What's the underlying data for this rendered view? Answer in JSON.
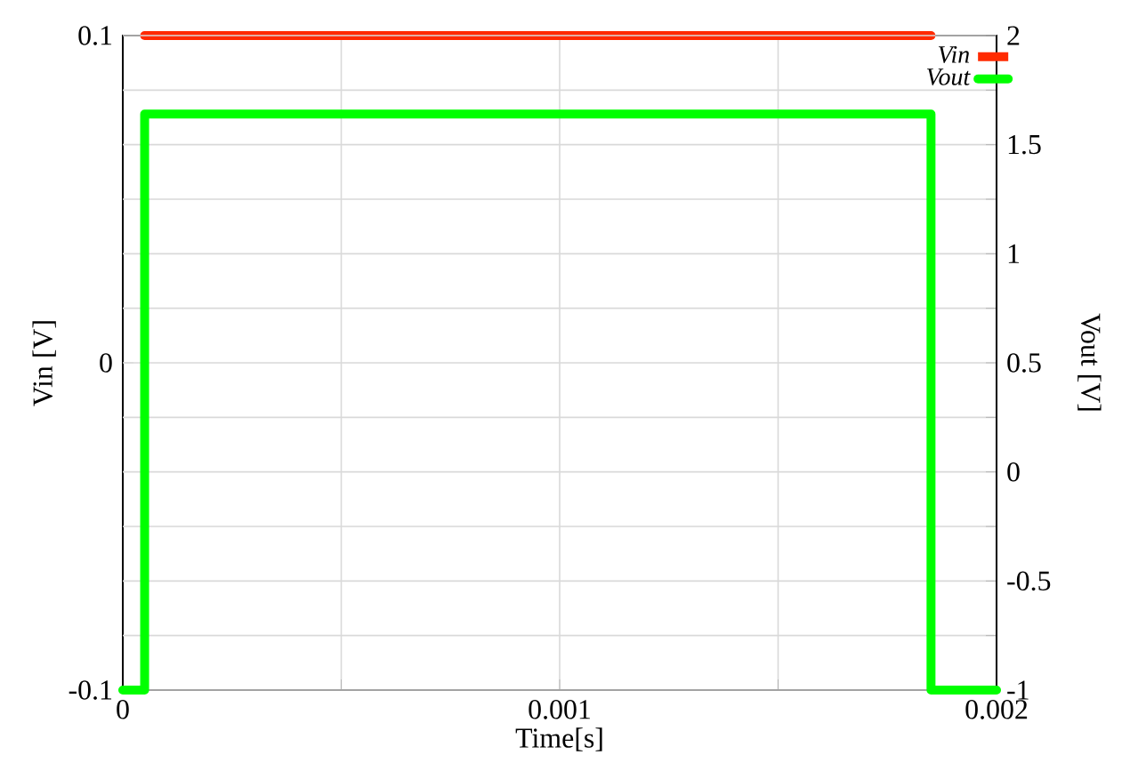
{
  "chart_data": {
    "type": "line",
    "xlabel": "Time[s]",
    "ylabel": "Vin [V]",
    "y2label": "Vout [V]",
    "xlim": [
      0,
      0.002
    ],
    "xticks": [
      0,
      {
        "value": 0.0005,
        "label": null
      },
      0.001,
      {
        "value": 0.0015,
        "label": null
      },
      0.002
    ],
    "ylim": [
      -0.1,
      0.1
    ],
    "yticks": [
      -0.1,
      0,
      0.1
    ],
    "y2lim": [
      -1,
      2
    ],
    "y2ticks": [
      -1,
      {
        "value": -0.75,
        "label": null
      },
      -0.5,
      {
        "value": -0.25,
        "label": null
      },
      0,
      {
        "value": 0.25,
        "label": null
      },
      0.5,
      {
        "value": 0.75,
        "label": null
      },
      1,
      {
        "value": 1.25,
        "label": null
      },
      1.5,
      {
        "value": 1.75,
        "label": null
      },
      2
    ],
    "grid": true,
    "legend": "top right",
    "marker": "none",
    "line_style": "solid",
    "series": [
      {
        "name": "Vin",
        "color": "#ff2a00",
        "axis": "y",
        "x": [
          5e-05,
          0.00185
        ],
        "values": [
          0.1,
          0.1
        ]
      },
      {
        "name": "Vout",
        "color": "#00ff00",
        "axis": "y2",
        "x": [
          0,
          5e-05,
          5e-05,
          0.00185,
          0.00185,
          0.002
        ],
        "values": [
          -1,
          -1,
          1.64,
          1.64,
          -1,
          -1
        ]
      }
    ]
  }
}
